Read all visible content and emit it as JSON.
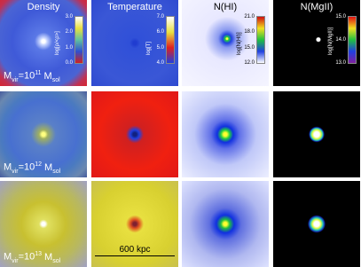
{
  "columns": [
    {
      "title": "Density",
      "colorbar": {
        "label": "log[ρ/<ρ>]",
        "ticks": [
          "3.0",
          "2.0",
          "1.0",
          "0.0"
        ]
      }
    },
    {
      "title": "Temperature",
      "colorbar": {
        "label": "log[T]",
        "ticks": [
          "7.0",
          "6.0",
          "5.0",
          "4.0"
        ]
      }
    },
    {
      "title": "N(HI)",
      "colorbar": {
        "label": "log[N(HI)]",
        "ticks": [
          "21.0",
          "18.0",
          "15.0",
          "12.0"
        ]
      }
    },
    {
      "title": "N(MgII)",
      "colorbar": {
        "label": "log[N(MgII)]",
        "ticks": [
          "15.0",
          "14.0",
          "13.0"
        ]
      }
    }
  ],
  "rows": [
    {
      "label": {
        "base": "M",
        "sub": "vir",
        "mid": "=10",
        "sup": "11",
        "unit": "M",
        "unit_sub": "sol"
      }
    },
    {
      "label": {
        "base": "M",
        "sub": "vir",
        "mid": "=10",
        "sup": "12",
        "unit": "M",
        "unit_sub": "sol"
      }
    },
    {
      "label": {
        "base": "M",
        "sub": "vir",
        "mid": "=10",
        "sup": "13",
        "unit": "M",
        "unit_sub": "sol"
      }
    }
  ],
  "scale_bar": "600 kpc"
}
